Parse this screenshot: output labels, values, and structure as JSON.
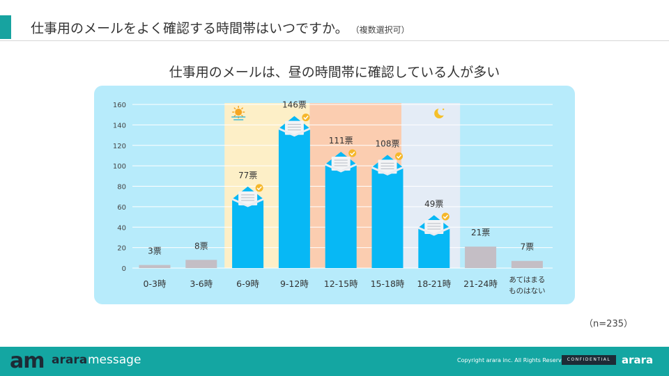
{
  "header": {
    "title": "仕事用のメールをよく確認する時間帯はいつですか。",
    "note": "（複数選択可）"
  },
  "chart_data": {
    "type": "bar",
    "title": "仕事用のメールは、昼の時間帯に確認している人が多い",
    "categories": [
      "0-3時",
      "3-6時",
      "6-9時",
      "9-12時",
      "12-15時",
      "15-18時",
      "18-21時",
      "21-24時",
      [
        "あてはまる",
        "ものはない"
      ]
    ],
    "values": [
      3,
      8,
      77,
      146,
      111,
      108,
      49,
      21,
      7
    ],
    "value_labels": [
      "3票",
      "8票",
      "77票",
      "146票",
      "111票",
      "108票",
      "49票",
      "21票",
      "7票"
    ],
    "highlighted": [
      false,
      false,
      true,
      true,
      true,
      true,
      true,
      false,
      false
    ],
    "ylim": [
      0,
      160
    ],
    "yticks": [
      0,
      20,
      40,
      60,
      80,
      100,
      120,
      140,
      160
    ],
    "grid": true,
    "colors": {
      "highlight_bar": "#07b8f5",
      "muted_bar": "#c4bec5",
      "morning_band": "#fdefc7",
      "noon_band": "#fbcdb0",
      "evening_band": "#e4ecf6",
      "panel": "#b7ebfb",
      "envelope": "#f3f4f6",
      "check_badge": "#f5b72a"
    },
    "time_icons": [
      "sun-icon",
      "moon-icon"
    ]
  },
  "n_note": "（n=235）",
  "footer": {
    "logo_mark": "am",
    "logo_word1": "arara",
    "logo_word2": "message",
    "copyright": "Copyright arara inc. All Rights Reserved.",
    "confidential": "CONFIDENTIAL",
    "brand": "arara"
  }
}
